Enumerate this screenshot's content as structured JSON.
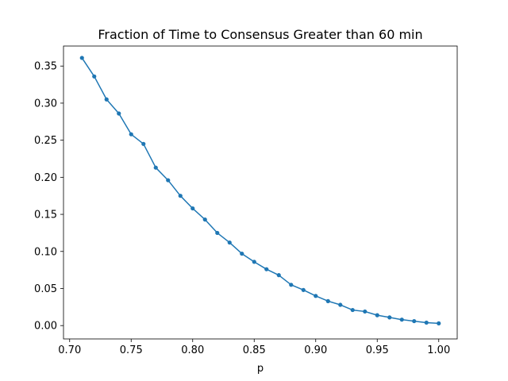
{
  "chart_data": {
    "type": "line",
    "title": "Fraction of Time to Consensus Greater than 60 min",
    "xlabel": "p",
    "ylabel": "",
    "xlim": [
      0.695,
      1.015
    ],
    "ylim": [
      -0.018,
      0.377
    ],
    "xticks": [
      0.7,
      0.75,
      0.8,
      0.85,
      0.9,
      0.95,
      1.0
    ],
    "xtick_labels": [
      "0.70",
      "0.75",
      "0.80",
      "0.85",
      "0.90",
      "0.95",
      "1.00"
    ],
    "yticks": [
      0.0,
      0.05,
      0.1,
      0.15,
      0.2,
      0.25,
      0.3,
      0.35
    ],
    "ytick_labels": [
      "0.00",
      "0.05",
      "0.10",
      "0.15",
      "0.20",
      "0.25",
      "0.30",
      "0.35"
    ],
    "grid": false,
    "series_color": "#1f77b4",
    "series": [
      {
        "x": [
          0.71,
          0.72,
          0.73,
          0.74,
          0.75,
          0.76,
          0.77,
          0.78,
          0.79,
          0.8,
          0.81,
          0.82,
          0.83,
          0.84,
          0.85,
          0.86,
          0.87,
          0.88,
          0.89,
          0.9,
          0.91,
          0.92,
          0.93,
          0.94,
          0.95,
          0.96,
          0.97,
          0.98,
          0.99,
          1.0
        ],
        "values": [
          0.361,
          0.336,
          0.305,
          0.286,
          0.258,
          0.245,
          0.213,
          0.196,
          0.175,
          0.158,
          0.143,
          0.125,
          0.112,
          0.097,
          0.086,
          0.076,
          0.068,
          0.055,
          0.048,
          0.04,
          0.033,
          0.028,
          0.021,
          0.019,
          0.014,
          0.011,
          0.008,
          0.006,
          0.004,
          0.003
        ]
      }
    ]
  }
}
